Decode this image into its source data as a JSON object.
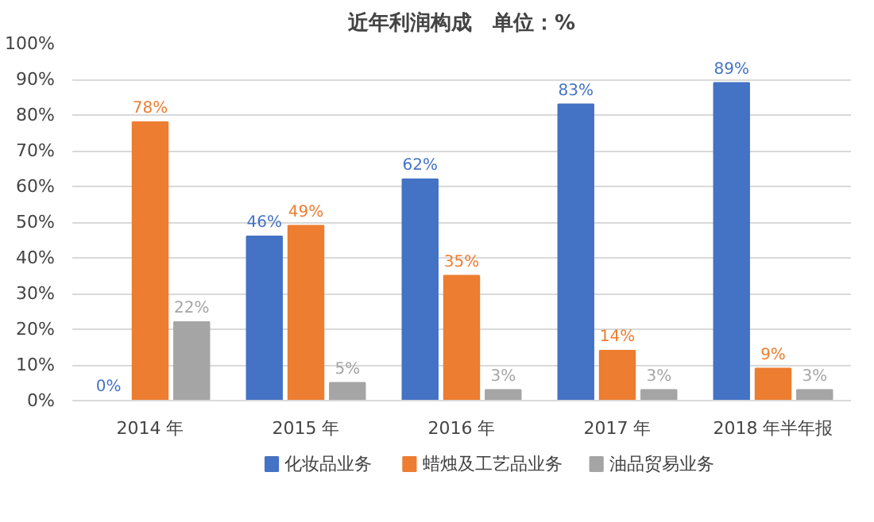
{
  "chart_data": {
    "type": "bar",
    "title": "近年利润构成　单位：%",
    "categories": [
      "2014 年",
      "2015 年",
      "2016 年",
      "2017 年",
      "2018 年半年报"
    ],
    "series": [
      {
        "name": "化妆品业务",
        "color": "#4472c4",
        "values": [
          0,
          46,
          62,
          83,
          89
        ],
        "value_labels": [
          "0%",
          "46%",
          "62%",
          "83%",
          "89%"
        ]
      },
      {
        "name": "蜡烛及工艺品业务",
        "color": "#ed7d31",
        "values": [
          78,
          49,
          35,
          14,
          9
        ],
        "value_labels": [
          "78%",
          "49%",
          "35%",
          "14%",
          "9%"
        ]
      },
      {
        "name": "油品贸易业务",
        "color": "#a5a5a5",
        "values": [
          22,
          5,
          3,
          3,
          3
        ],
        "value_labels": [
          "22%",
          "5%",
          "3%",
          "3%",
          "3%"
        ]
      }
    ],
    "ylim": [
      0,
      100
    ],
    "yticks": [
      {
        "value": 0,
        "label": "0%"
      },
      {
        "value": 10,
        "label": "10%"
      },
      {
        "value": 20,
        "label": "20%"
      },
      {
        "value": 30,
        "label": "30%"
      },
      {
        "value": 40,
        "label": "40%"
      },
      {
        "value": 50,
        "label": "50%"
      },
      {
        "value": 60,
        "label": "60%"
      },
      {
        "value": 70,
        "label": "70%"
      },
      {
        "value": 80,
        "label": "80%"
      },
      {
        "value": 90,
        "label": "90%"
      },
      {
        "value": 100,
        "label": "100%"
      }
    ],
    "grid": "y",
    "legend": "bottom"
  }
}
